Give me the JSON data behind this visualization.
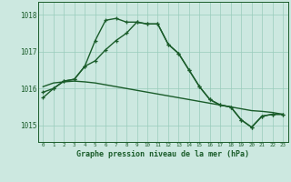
{
  "xlabel": "Graphe pression niveau de la mer (hPa)",
  "background_color": "#cce8e0",
  "grid_color": "#99ccbb",
  "line_color": "#1a5c2a",
  "hours": [
    0,
    1,
    2,
    3,
    4,
    5,
    6,
    7,
    8,
    9,
    10,
    11,
    12,
    13,
    14,
    15,
    16,
    17,
    18,
    19,
    20,
    21,
    22,
    23
  ],
  "series1": [
    1015.75,
    1016.0,
    1016.2,
    1016.25,
    1016.6,
    1016.75,
    1017.05,
    1017.3,
    1017.5,
    1017.8,
    1017.75,
    1017.75,
    1017.2,
    1016.95,
    1016.5,
    1016.05,
    1015.7,
    1015.55,
    1015.5,
    1015.15,
    1014.95,
    1015.25,
    1015.3,
    1015.3
  ],
  "series2": [
    1015.9,
    1016.0,
    1016.2,
    1016.25,
    1016.6,
    1017.3,
    1017.85,
    1017.9,
    1017.8,
    1017.8,
    1017.75,
    1017.75,
    1017.2,
    1016.95,
    1016.5,
    1016.05,
    1015.7,
    1015.55,
    1015.5,
    1015.15,
    1014.95,
    1015.25,
    1015.3,
    1015.3
  ],
  "series3": [
    1016.05,
    1016.15,
    1016.18,
    1016.2,
    1016.18,
    1016.15,
    1016.1,
    1016.05,
    1016.0,
    1015.95,
    1015.9,
    1015.85,
    1015.8,
    1015.75,
    1015.7,
    1015.65,
    1015.6,
    1015.55,
    1015.5,
    1015.45,
    1015.4,
    1015.38,
    1015.35,
    1015.3
  ],
  "ylim_min": 1014.55,
  "ylim_max": 1018.35,
  "yticks": [
    1015,
    1016,
    1017,
    1018
  ],
  "markersize": 3.5,
  "linewidth": 1.0
}
